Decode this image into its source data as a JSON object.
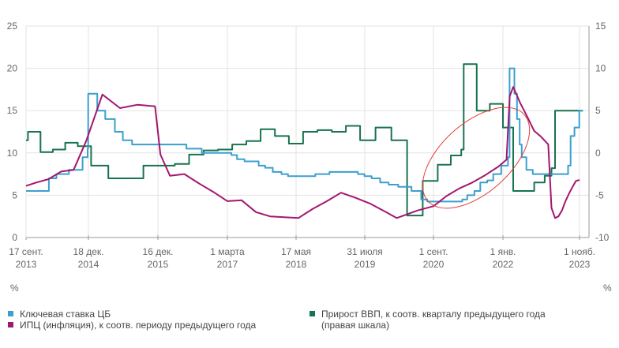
{
  "chart_data": {
    "type": "line",
    "title": "",
    "left_axis": {
      "label": "%",
      "ylim": [
        0,
        25
      ],
      "ticks": [
        0,
        5,
        10,
        15,
        20,
        25
      ]
    },
    "right_axis": {
      "label": "%",
      "ylim": [
        -10,
        15
      ],
      "ticks": [
        -10,
        -5,
        0,
        5,
        10,
        15
      ]
    },
    "x_ticks": [
      {
        "date": "2013-09-17",
        "label": [
          "17 сент.",
          "2013"
        ]
      },
      {
        "date": "2014-12-18",
        "label": [
          "18 дек.",
          "2014"
        ]
      },
      {
        "date": "2015-12-16",
        "label": [
          "16 дек.",
          "2015"
        ]
      },
      {
        "date": "2017-03-01",
        "label": [
          "1 марта",
          "2017"
        ]
      },
      {
        "date": "2018-05-17",
        "label": [
          "17 мая",
          "2018"
        ]
      },
      {
        "date": "2019-07-31",
        "label": [
          "31 июля",
          "2019"
        ]
      },
      {
        "date": "2020-09-01",
        "label": [
          "1 сент.",
          "2020"
        ]
      },
      {
        "date": "2022-01-01",
        "label": [
          "1 янв.",
          "2022"
        ]
      },
      {
        "date": "2023-11-01",
        "label": [
          "1 нояб.",
          "2023"
        ]
      }
    ],
    "grid": true,
    "legend_position": "bottom",
    "series": [
      {
        "name": "Ключевая ставка ЦБ",
        "color": "#3b9fcf",
        "axis": "left",
        "step": true,
        "points": [
          [
            "2013-09-17",
            5.5
          ],
          [
            "2014-03-03",
            7
          ],
          [
            "2014-04-28",
            7.5
          ],
          [
            "2014-07-28",
            8
          ],
          [
            "2014-11-05",
            9.5
          ],
          [
            "2014-12-12",
            10.5
          ],
          [
            "2014-12-16",
            17
          ],
          [
            "2015-02-02",
            15
          ],
          [
            "2015-03-16",
            14
          ],
          [
            "2015-05-05",
            12.5
          ],
          [
            "2015-06-16",
            11.5
          ],
          [
            "2015-08-03",
            11
          ],
          [
            "2016-06-14",
            10.5
          ],
          [
            "2016-09-19",
            10
          ],
          [
            "2017-03-27",
            9.75
          ],
          [
            "2017-05-02",
            9.25
          ],
          [
            "2017-06-19",
            9
          ],
          [
            "2017-09-18",
            8.5
          ],
          [
            "2017-10-30",
            8.25
          ],
          [
            "2017-12-18",
            7.75
          ],
          [
            "2018-02-12",
            7.5
          ],
          [
            "2018-03-26",
            7.25
          ],
          [
            "2018-09-17",
            7.5
          ],
          [
            "2018-12-17",
            7.75
          ],
          [
            "2019-06-17",
            7.5
          ],
          [
            "2019-07-29",
            7.25
          ],
          [
            "2019-09-09",
            7
          ],
          [
            "2019-10-28",
            6.5
          ],
          [
            "2019-12-16",
            6.25
          ],
          [
            "2020-02-10",
            6
          ],
          [
            "2020-04-27",
            5.5
          ],
          [
            "2020-06-22",
            4.5
          ],
          [
            "2020-07-27",
            4.25
          ],
          [
            "2021-03-22",
            4.5
          ],
          [
            "2021-04-26",
            5
          ],
          [
            "2021-06-15",
            5.5
          ],
          [
            "2021-07-26",
            6.5
          ],
          [
            "2021-09-13",
            6.75
          ],
          [
            "2021-10-25",
            7.5
          ],
          [
            "2021-12-20",
            8.5
          ],
          [
            "2022-02-14",
            9.5
          ],
          [
            "2022-02-28",
            20
          ],
          [
            "2022-04-11",
            17
          ],
          [
            "2022-05-04",
            14
          ],
          [
            "2022-05-27",
            11
          ],
          [
            "2022-06-14",
            9.5
          ],
          [
            "2022-07-25",
            8
          ],
          [
            "2022-09-19",
            7.5
          ],
          [
            "2023-07-24",
            8.5
          ],
          [
            "2023-08-15",
            12
          ],
          [
            "2023-09-18",
            13
          ],
          [
            "2023-10-30",
            15
          ],
          [
            "2023-12-01",
            15
          ]
        ]
      },
      {
        "name": "ИПЦ (инфляция), к соотв. периоду предыдущего года",
        "color": "#a3176f",
        "axis": "left",
        "step": false,
        "points": [
          [
            "2013-09-17",
            6.1
          ],
          [
            "2013-12-01",
            6.5
          ],
          [
            "2014-03-01",
            6.9
          ],
          [
            "2014-06-01",
            7.8
          ],
          [
            "2014-09-01",
            8.0
          ],
          [
            "2014-12-01",
            11.4
          ],
          [
            "2015-03-01",
            16.9
          ],
          [
            "2015-06-01",
            15.3
          ],
          [
            "2015-09-01",
            15.7
          ],
          [
            "2015-12-01",
            15.5
          ],
          [
            "2016-01-01",
            9.8
          ],
          [
            "2016-03-01",
            7.3
          ],
          [
            "2016-06-01",
            7.5
          ],
          [
            "2016-09-01",
            6.4
          ],
          [
            "2016-12-01",
            5.4
          ],
          [
            "2017-03-01",
            4.3
          ],
          [
            "2017-06-01",
            4.4
          ],
          [
            "2017-09-01",
            3.0
          ],
          [
            "2017-12-01",
            2.5
          ],
          [
            "2018-03-01",
            2.4
          ],
          [
            "2018-06-01",
            2.3
          ],
          [
            "2018-09-01",
            3.4
          ],
          [
            "2018-12-01",
            4.3
          ],
          [
            "2019-03-01",
            5.3
          ],
          [
            "2019-06-01",
            4.7
          ],
          [
            "2019-09-01",
            4.0
          ],
          [
            "2019-12-01",
            3.0
          ],
          [
            "2020-02-01",
            2.3
          ],
          [
            "2020-06-01",
            3.2
          ],
          [
            "2020-09-01",
            3.7
          ],
          [
            "2020-12-01",
            4.9
          ],
          [
            "2021-03-01",
            5.8
          ],
          [
            "2021-06-01",
            6.5
          ],
          [
            "2021-09-01",
            7.4
          ],
          [
            "2021-12-01",
            8.4
          ],
          [
            "2022-02-01",
            9.2
          ],
          [
            "2022-03-01",
            16.7
          ],
          [
            "2022-04-01",
            17.8
          ],
          [
            "2022-06-01",
            15.9
          ],
          [
            "2022-08-01",
            14.3
          ],
          [
            "2022-10-01",
            12.6
          ],
          [
            "2022-12-01",
            11.9
          ],
          [
            "2023-02-01",
            11.0
          ],
          [
            "2023-03-01",
            3.5
          ],
          [
            "2023-04-01",
            2.3
          ],
          [
            "2023-05-01",
            2.5
          ],
          [
            "2023-06-01",
            3.2
          ],
          [
            "2023-07-01",
            4.3
          ],
          [
            "2023-08-01",
            5.2
          ],
          [
            "2023-09-01",
            6.0
          ],
          [
            "2023-10-01",
            6.7
          ],
          [
            "2023-11-01",
            6.8
          ]
        ]
      },
      {
        "name": "Прирост ВВП, к соотв. кварталу предыдущего года (правая шкала)",
        "color": "#18734f",
        "axis": "right",
        "step": true,
        "points": [
          [
            "2013-09-17",
            1.5
          ],
          [
            "2013-10-01",
            2.5
          ],
          [
            "2014-01-01",
            0.1
          ],
          [
            "2014-04-01",
            0.4
          ],
          [
            "2014-07-01",
            1.2
          ],
          [
            "2014-10-01",
            0.8
          ],
          [
            "2015-01-01",
            -1.5
          ],
          [
            "2015-04-01",
            -3
          ],
          [
            "2015-10-01",
            -1.5
          ],
          [
            "2016-04-01",
            -1.3
          ],
          [
            "2016-07-01",
            -0.2
          ],
          [
            "2016-10-01",
            0.3
          ],
          [
            "2017-01-01",
            0.4
          ],
          [
            "2017-04-01",
            1.0
          ],
          [
            "2017-07-01",
            1.4
          ],
          [
            "2017-10-01",
            2.8
          ],
          [
            "2018-01-01",
            2.0
          ],
          [
            "2018-04-01",
            1.1
          ],
          [
            "2018-07-01",
            2.5
          ],
          [
            "2018-10-01",
            2.7
          ],
          [
            "2019-01-01",
            2.5
          ],
          [
            "2019-04-01",
            3.2
          ],
          [
            "2019-07-01",
            1.5
          ],
          [
            "2019-10-01",
            3.0
          ],
          [
            "2020-01-01",
            1.5
          ],
          [
            "2020-04-01",
            -7.4
          ],
          [
            "2020-07-01",
            -3.3
          ],
          [
            "2020-10-01",
            -1.4
          ],
          [
            "2021-01-01",
            -0.3
          ],
          [
            "2021-03-15",
            0.4
          ],
          [
            "2021-04-01",
            10.5
          ],
          [
            "2021-07-01",
            5
          ],
          [
            "2021-10-01",
            5.8
          ],
          [
            "2022-01-01",
            3
          ],
          [
            "2022-04-01",
            -4.5
          ],
          [
            "2022-10-01",
            -3.5
          ],
          [
            "2023-01-01",
            -2.7
          ],
          [
            "2023-03-01",
            -1.8
          ],
          [
            "2023-04-01",
            5
          ],
          [
            "2023-12-01",
            5
          ]
        ]
      }
    ],
    "legend": [
      {
        "label": "Ключевая ставка ЦБ",
        "color": "#3b9fcf"
      },
      {
        "label": "ИПЦ (инфляция), к соотв. периоду предыдущего года",
        "color": "#a3176f"
      },
      {
        "label": "Прирост ВВП, к соотв. кварталу предыдущего года",
        "label2": "(правая шкала)",
        "color": "#18734f"
      }
    ],
    "annotation": {
      "shape": "ellipse",
      "color": "#e0403a"
    }
  }
}
